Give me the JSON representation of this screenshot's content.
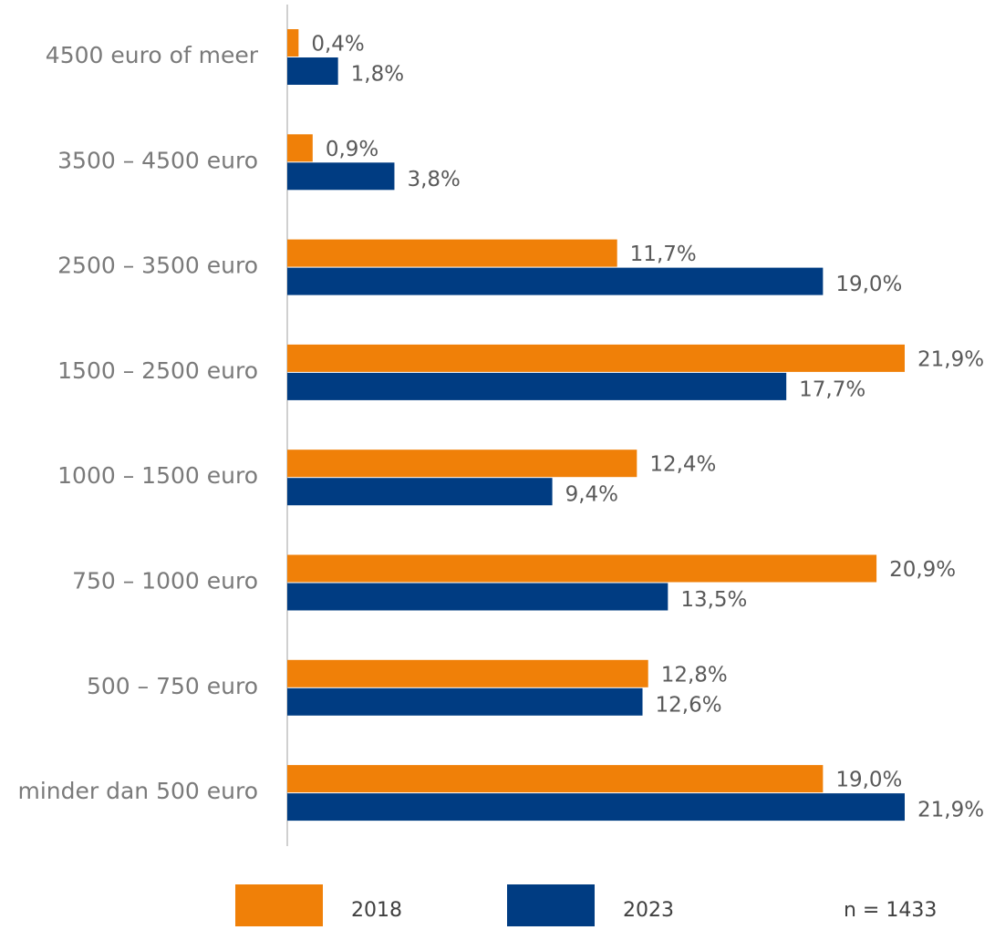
{
  "chart_data": {
    "type": "bar",
    "orientation": "horizontal",
    "categories": [
      "4500 euro of meer",
      "3500 – 4500 euro",
      "2500 – 3500 euro",
      "1500 – 2500 euro",
      "1000 – 1500 euro",
      "750 – 1000 euro",
      "500 – 750 euro",
      "minder dan 500 euro"
    ],
    "series": [
      {
        "name": "2018",
        "color": "#f08008",
        "values": [
          0.4,
          0.9,
          11.7,
          21.9,
          12.4,
          20.9,
          12.8,
          19.0
        ],
        "value_labels": [
          "0,4%",
          "0,9%",
          "11,7%",
          "21,9%",
          "12,4%",
          "20,9%",
          "12,8%",
          "19,0%"
        ]
      },
      {
        "name": "2023",
        "color": "#003c82",
        "values": [
          1.8,
          3.8,
          19.0,
          17.7,
          9.4,
          13.5,
          12.6,
          21.9
        ],
        "value_labels": [
          "1,8%",
          "3,8%",
          "19,0%",
          "17,7%",
          "9,4%",
          "13,5%",
          "12,6%",
          "21,9%"
        ]
      }
    ],
    "annotations": [
      "n = 1433"
    ],
    "legend": "bottom"
  }
}
